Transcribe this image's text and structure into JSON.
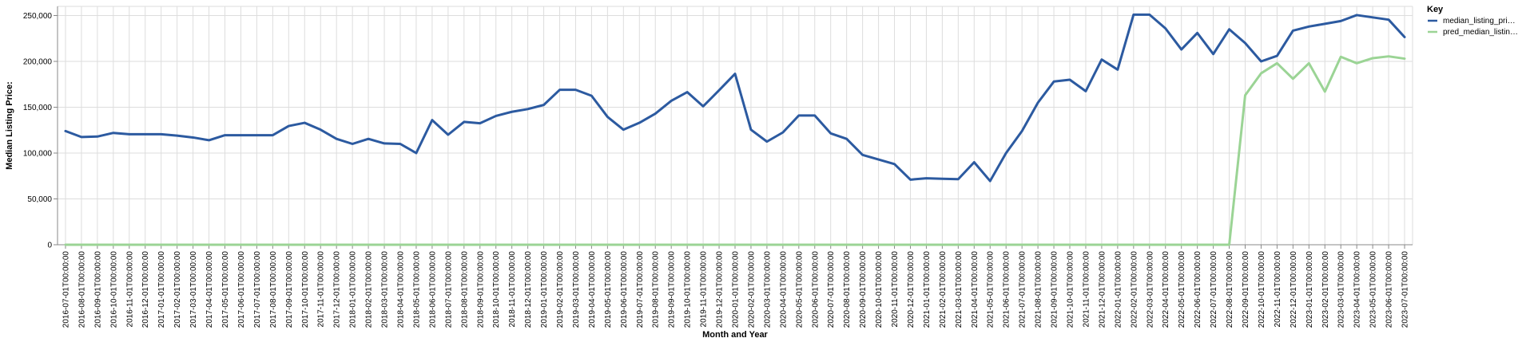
{
  "chart_data": {
    "type": "line",
    "xlabel": "Month and Year",
    "ylabel": "Median Listing Price:",
    "ylim": [
      0,
      260000
    ],
    "yticks": [
      0,
      50000,
      100000,
      150000,
      200000,
      250000
    ],
    "ytick_labels": [
      "0",
      "50,000",
      "100,000",
      "150,000",
      "200,000",
      "250,000"
    ],
    "grid": true,
    "legend": {
      "title": "Key",
      "placement": "top-right",
      "entries": [
        {
          "label": "median_listing_pri…",
          "color": "#2c5aa0"
        },
        {
          "label": "pred_median_listin…",
          "color": "#9bd495"
        }
      ]
    },
    "x": [
      "2016-07-01T00:00:00",
      "2016-08-01T00:00:00",
      "2016-09-01T00:00:00",
      "2016-10-01T00:00:00",
      "2016-11-01T00:00:00",
      "2016-12-01T00:00:00",
      "2017-01-01T00:00:00",
      "2017-02-01T00:00:00",
      "2017-03-01T00:00:00",
      "2017-04-01T00:00:00",
      "2017-05-01T00:00:00",
      "2017-06-01T00:00:00",
      "2017-07-01T00:00:00",
      "2017-08-01T00:00:00",
      "2017-09-01T00:00:00",
      "2017-10-01T00:00:00",
      "2017-11-01T00:00:00",
      "2017-12-01T00:00:00",
      "2018-01-01T00:00:00",
      "2018-02-01T00:00:00",
      "2018-03-01T00:00:00",
      "2018-04-01T00:00:00",
      "2018-05-01T00:00:00",
      "2018-06-01T00:00:00",
      "2018-07-01T00:00:00",
      "2018-08-01T00:00:00",
      "2018-09-01T00:00:00",
      "2018-10-01T00:00:00",
      "2018-11-01T00:00:00",
      "2018-12-01T00:00:00",
      "2019-01-01T00:00:00",
      "2019-02-01T00:00:00",
      "2019-03-01T00:00:00",
      "2019-04-01T00:00:00",
      "2019-05-01T00:00:00",
      "2019-06-01T00:00:00",
      "2019-07-01T00:00:00",
      "2019-08-01T00:00:00",
      "2019-09-01T00:00:00",
      "2019-10-01T00:00:00",
      "2019-11-01T00:00:00",
      "2019-12-01T00:00:00",
      "2020-01-01T00:00:00",
      "2020-02-01T00:00:00",
      "2020-03-01T00:00:00",
      "2020-04-01T00:00:00",
      "2020-05-01T00:00:00",
      "2020-06-01T00:00:00",
      "2020-07-01T00:00:00",
      "2020-08-01T00:00:00",
      "2020-09-01T00:00:00",
      "2020-10-01T00:00:00",
      "2020-11-01T00:00:00",
      "2020-12-01T00:00:00",
      "2021-01-01T00:00:00",
      "2021-02-01T00:00:00",
      "2021-03-01T00:00:00",
      "2021-04-01T00:00:00",
      "2021-05-01T00:00:00",
      "2021-06-01T00:00:00",
      "2021-07-01T00:00:00",
      "2021-08-01T00:00:00",
      "2021-09-01T00:00:00",
      "2021-10-01T00:00:00",
      "2021-11-01T00:00:00",
      "2021-12-01T00:00:00",
      "2022-01-01T00:00:00",
      "2022-02-01T00:00:00",
      "2022-03-01T00:00:00",
      "2022-04-01T00:00:00",
      "2022-05-01T00:00:00",
      "2022-06-01T00:00:00",
      "2022-07-01T00:00:00",
      "2022-08-01T00:00:00",
      "2022-09-01T00:00:00",
      "2022-10-01T00:00:00",
      "2022-11-01T00:00:00",
      "2022-12-01T00:00:00",
      "2023-01-01T00:00:00",
      "2023-02-01T00:00:00",
      "2023-03-01T00:00:00",
      "2023-04-01T00:00:00",
      "2023-05-01T00:00:00",
      "2023-06-01T00:00:00",
      "2023-07-01T00:00:00"
    ],
    "series": [
      {
        "name": "median_listing_pri…",
        "color": "#2c5aa0",
        "values": [
          124000,
          117500,
          118000,
          122000,
          120500,
          120500,
          120500,
          119000,
          117000,
          114000,
          119500,
          119500,
          119500,
          119500,
          129500,
          133000,
          125500,
          115500,
          110000,
          115500,
          110500,
          110000,
          100000,
          136000,
          120000,
          134000,
          132500,
          140500,
          145000,
          148000,
          152500,
          169000,
          169000,
          162500,
          139500,
          125500,
          133000,
          143000,
          157000,
          166500,
          151000,
          168500,
          186500,
          125500,
          112500,
          122500,
          141000,
          141000,
          121500,
          115500,
          98000,
          93000,
          88000,
          71000,
          72500,
          72000,
          71500,
          90000,
          69500,
          100000,
          124000,
          155000,
          178000,
          180000,
          167500,
          202000,
          191000,
          251000,
          251000,
          236000,
          213000,
          231000,
          208000,
          235000,
          220000,
          200000,
          206000,
          233500,
          238000,
          241000,
          244000,
          250500,
          248000,
          245500,
          226500
        ]
      },
      {
        "name": "pred_median_listin…",
        "color": "#9bd495",
        "values": [
          0,
          0,
          0,
          0,
          0,
          0,
          0,
          0,
          0,
          0,
          0,
          0,
          0,
          0,
          0,
          0,
          0,
          0,
          0,
          0,
          0,
          0,
          0,
          0,
          0,
          0,
          0,
          0,
          0,
          0,
          0,
          0,
          0,
          0,
          0,
          0,
          0,
          0,
          0,
          0,
          0,
          0,
          0,
          0,
          0,
          0,
          0,
          0,
          0,
          0,
          0,
          0,
          0,
          0,
          0,
          0,
          0,
          0,
          0,
          0,
          0,
          0,
          0,
          0,
          0,
          0,
          0,
          0,
          0,
          0,
          0,
          0,
          0,
          0,
          163000,
          187000,
          198000,
          181000,
          198000,
          167000,
          205000,
          198000,
          203500,
          205500,
          203000
        ]
      }
    ]
  }
}
